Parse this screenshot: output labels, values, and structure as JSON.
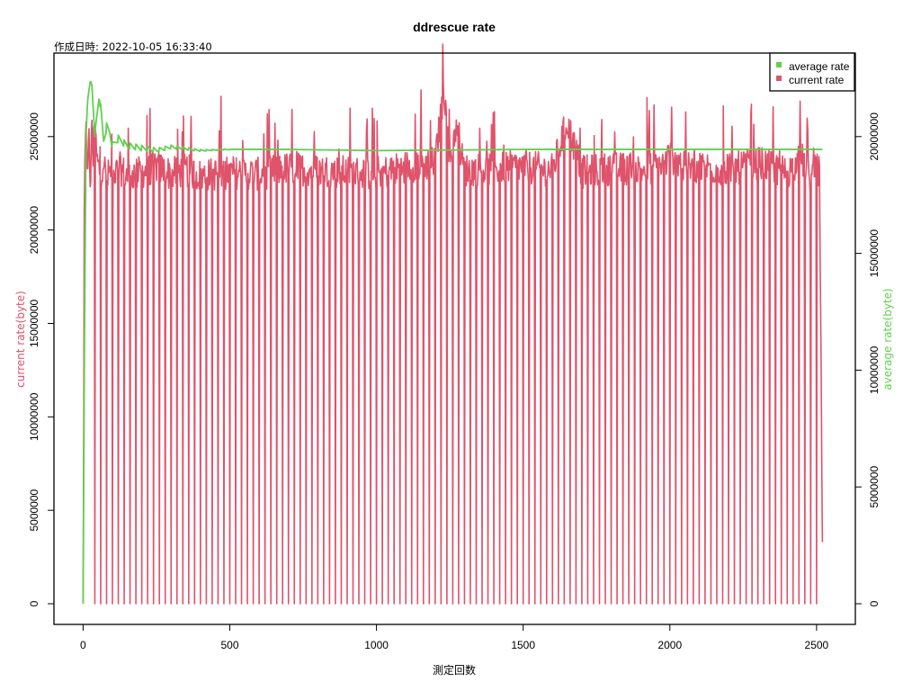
{
  "chart_data": {
    "type": "line",
    "title": "ddrescue rate",
    "subtitle": "作成日時: 2022-10-05 16:33:40",
    "xlabel": "測定回数",
    "ylabel_left": "current rate(byte)",
    "ylabel_right": "average rate(byte)",
    "xlim": [
      0,
      2520
    ],
    "ylim_left": [
      0,
      28000000
    ],
    "ylim_right": [
      0,
      22400000
    ],
    "x_ticks": [
      "0",
      "500",
      "1000",
      "1500",
      "2000",
      "2500"
    ],
    "y_left_ticks": [
      "0",
      "5000000",
      "10000000",
      "15000000",
      "20000000",
      "25000000"
    ],
    "y_right_ticks": [
      "0",
      "5000000",
      "10000000",
      "15000000",
      "20000000"
    ],
    "legend_position": "top-right",
    "legend": [
      {
        "name": "average rate",
        "color": "#61D04F"
      },
      {
        "name": "current rate",
        "color": "#DF536B"
      }
    ],
    "colors": {
      "current": "#DF536B",
      "average": "#61D04F"
    },
    "grid": false,
    "series": [
      {
        "name": "current rate",
        "axis": "left",
        "color": "#DF536B",
        "x": [
          0,
          5,
          10,
          15,
          20,
          25,
          30,
          35,
          40,
          45,
          50,
          60,
          70,
          80,
          90,
          100,
          125,
          150,
          200,
          250,
          300,
          350,
          400,
          500,
          600,
          700,
          800,
          900,
          1000,
          1100,
          1200,
          1230,
          1250,
          1270,
          1300,
          1400,
          1500,
          1600,
          1650,
          1700,
          1800,
          1900,
          1980,
          2000,
          2050,
          2100,
          2200,
          2300,
          2400,
          2450,
          2480,
          2500,
          2510,
          2520
        ],
        "values": [
          0,
          23000000,
          25200000,
          23500000,
          24800000,
          22000000,
          26000000,
          23200000,
          26500000,
          24000000,
          23500000,
          23000000,
          23800000,
          22500000,
          23200000,
          22800000,
          23300000,
          22900000,
          23100000,
          23400000,
          23000000,
          23200000,
          22900000,
          23100000,
          23000000,
          23300000,
          23200000,
          23100000,
          23000000,
          23400000,
          23600000,
          27600000,
          23800000,
          25500000,
          23200000,
          23300000,
          23400000,
          23200000,
          25800000,
          23100000,
          23300000,
          23200000,
          23500000,
          24000000,
          23300000,
          23400000,
          23200000,
          23600000,
          23100000,
          23800000,
          22800000,
          23300000,
          23000000,
          3300000
        ],
        "dropout_interval": 20,
        "dropout_value": 0
      },
      {
        "name": "average rate",
        "axis": "right",
        "color": "#61D04F",
        "x": [
          0,
          5,
          10,
          15,
          20,
          25,
          30,
          40,
          50,
          55,
          60,
          70,
          80,
          90,
          100,
          120,
          150,
          200,
          250,
          300,
          400,
          500,
          700,
          1000,
          1500,
          2000,
          2520
        ],
        "values": [
          0,
          12000000,
          20000000,
          21500000,
          22000000,
          22400000,
          22200000,
          20000000,
          21200000,
          21800000,
          21200000,
          19800000,
          20400000,
          20200000,
          19600000,
          19900000,
          19600000,
          19500000,
          19400000,
          19550000,
          19400000,
          19450000,
          19450000,
          19400000,
          19450000,
          19450000,
          19450000
        ]
      }
    ]
  }
}
